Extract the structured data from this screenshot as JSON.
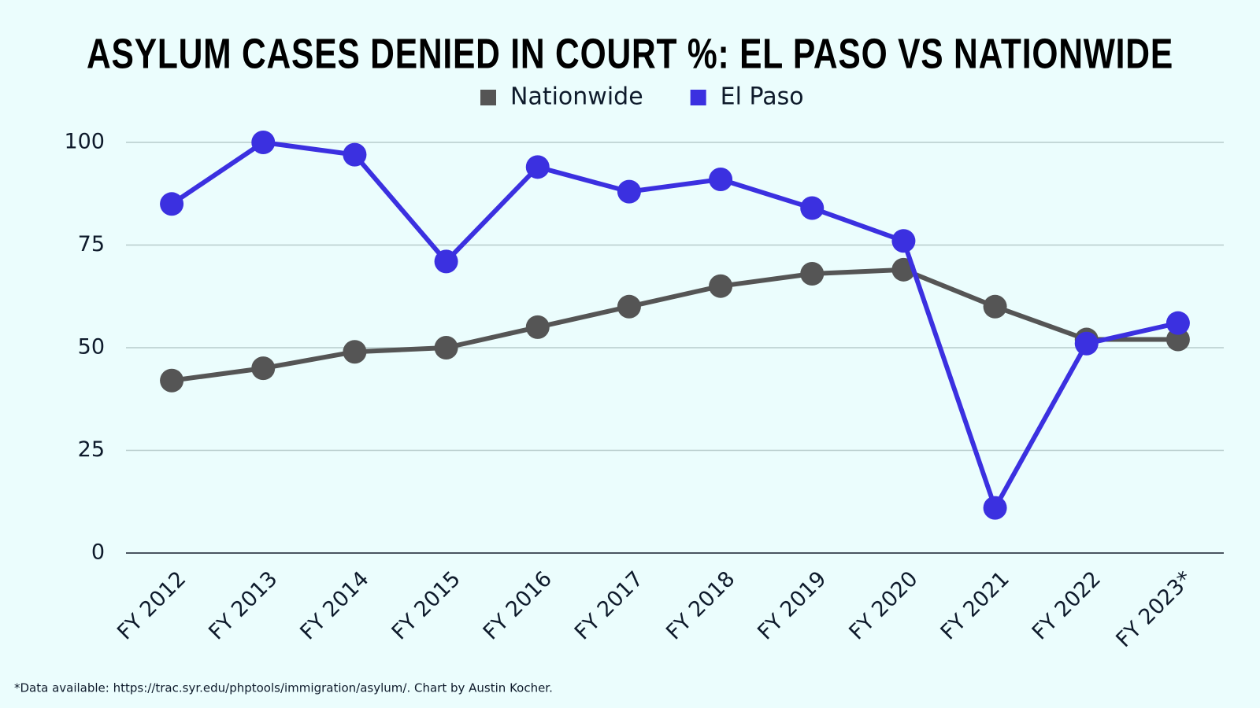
{
  "chart_data": {
    "type": "line",
    "title": "ASYLUM CASES DENIED IN COURT %: EL PASO VS NATIONWIDE",
    "footnote": "*Data available: https://trac.syr.edu/phptools/immigration/asylum/. Chart by Austin Kocher.",
    "categories": [
      "FY 2012",
      "FY 2013",
      "FY 2014",
      "FY 2015",
      "FY 2016",
      "FY 2017",
      "FY 2018",
      "FY 2019",
      "FY 2020",
      "FY 2021",
      "FY 2022",
      "FY 2023*"
    ],
    "series": [
      {
        "name": "Nationwide",
        "color": "#555555",
        "values": [
          42,
          45,
          49,
          50,
          55,
          60,
          65,
          68,
          69,
          60,
          52,
          52
        ]
      },
      {
        "name": "El Paso",
        "color": "#3b30e0",
        "values": [
          85,
          100,
          97,
          71,
          94,
          88,
          91,
          84,
          76,
          11,
          51,
          56
        ]
      }
    ],
    "ylim": [
      0,
      100
    ],
    "yticks": [
      0,
      25,
      50,
      75,
      100
    ],
    "grid": true
  }
}
